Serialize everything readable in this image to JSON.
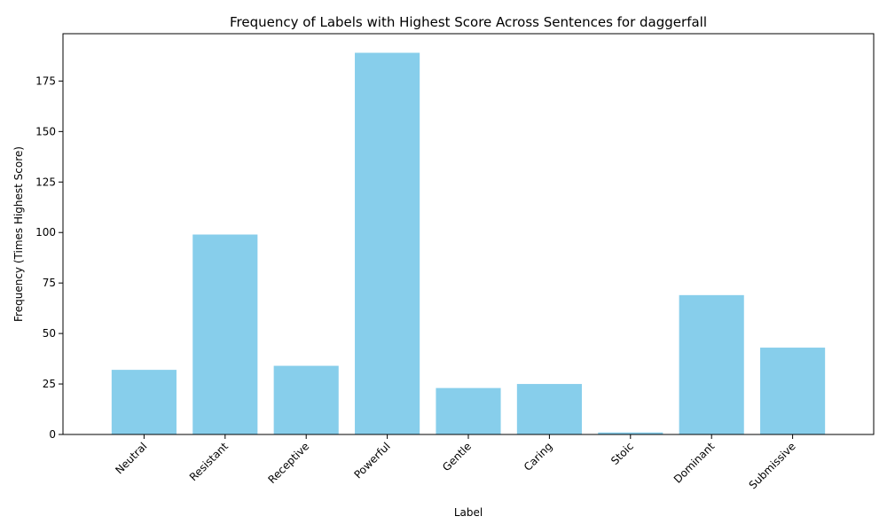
{
  "chart_data": {
    "type": "bar",
    "title": "Frequency of Labels with Highest Score Across Sentences for daggerfall",
    "xlabel": "Label",
    "ylabel": "Frequency (Times Highest Score)",
    "categories": [
      "Neutral",
      "Resistant",
      "Receptive",
      "Powerful",
      "Gentle",
      "Caring",
      "Stoic",
      "Dominant",
      "Submissive"
    ],
    "values": [
      32,
      99,
      34,
      189,
      23,
      25,
      1,
      69,
      43
    ],
    "yticks": [
      0,
      25,
      50,
      75,
      100,
      125,
      150,
      175
    ],
    "ylim": [
      0,
      198.45
    ],
    "bar_color": "#87ceeb",
    "grid": false,
    "legend": "none"
  }
}
